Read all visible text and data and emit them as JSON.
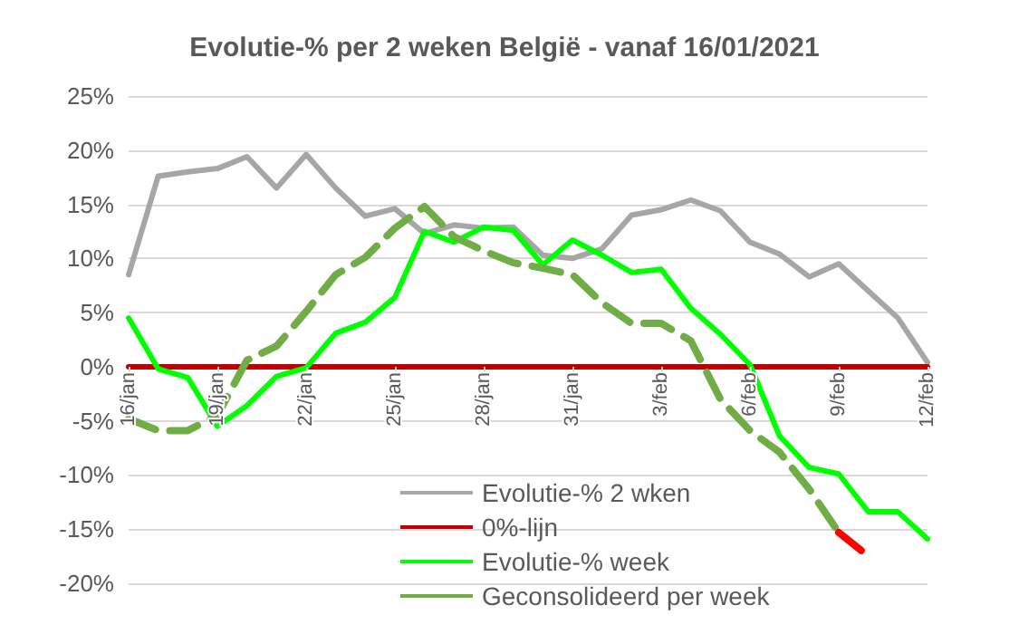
{
  "chart_data": {
    "type": "line",
    "title": "Evolutie-% per 2 weken België - vanaf 16/01/2021",
    "categories": [
      "16/jan",
      null,
      null,
      "19/jan",
      null,
      null,
      "22/jan",
      null,
      null,
      "25/jan",
      null,
      null,
      "28/jan",
      null,
      null,
      "31/jan",
      null,
      null,
      "3/feb",
      null,
      null,
      "6/feb",
      null,
      null,
      "9/feb",
      null,
      null,
      "12/feb"
    ],
    "ylim": [
      -20,
      25
    ],
    "yticks": [
      {
        "value": -20,
        "label": "-20%"
      },
      {
        "value": -15,
        "label": "-15%"
      },
      {
        "value": -10,
        "label": "-10%"
      },
      {
        "value": -5,
        "label": "-5%"
      },
      {
        "value": 0,
        "label": "0%"
      },
      {
        "value": 5,
        "label": "5%"
      },
      {
        "value": 10,
        "label": "10%"
      },
      {
        "value": 15,
        "label": "15%"
      },
      {
        "value": 20,
        "label": "20%"
      },
      {
        "value": 25,
        "label": "25%"
      }
    ],
    "grid": "y",
    "legend": "bottom",
    "marker": "none",
    "series": [
      {
        "name": "Evolutie-% 2 wken",
        "color": "#a6a6a6",
        "line_style": "solid",
        "values": [
          8.5,
          17.6,
          18.0,
          18.3,
          19.4,
          16.5,
          19.6,
          16.5,
          13.9,
          14.6,
          12.3,
          13.1,
          12.8,
          12.9,
          10.3,
          10.0,
          10.9,
          14.0,
          14.5,
          15.4,
          14.4,
          11.5,
          10.4,
          8.3,
          9.5,
          7.0,
          4.5,
          0.4
        ]
      },
      {
        "name": "0%-lijn",
        "color": "#c00000",
        "line_style": "solid",
        "values": [
          0,
          0,
          0,
          0,
          0,
          0,
          0,
          0,
          0,
          0,
          0,
          0,
          0,
          0,
          0,
          0,
          0,
          0,
          0,
          0,
          0,
          0,
          0,
          0,
          0,
          0,
          0,
          0
        ]
      },
      {
        "name": "Evolutie-% week",
        "color": "#00ff00",
        "line_style": "solid",
        "values": [
          4.5,
          -0.2,
          -1.0,
          -5.5,
          -3.6,
          -0.9,
          -0.1,
          3.1,
          4.1,
          6.4,
          12.5,
          11.5,
          12.9,
          12.6,
          9.4,
          11.7,
          10.3,
          8.7,
          9.0,
          5.4,
          3.0,
          0.2,
          -6.4,
          -9.3,
          -9.9,
          -13.4,
          -13.4,
          -15.9
        ]
      },
      {
        "name": "Geconsolideerd per week",
        "color": "#70ad47",
        "line_style": "dashed",
        "values": [
          -4.8,
          -5.9,
          -5.9,
          -4.5,
          0.6,
          1.9,
          5.1,
          8.5,
          10.1,
          12.8,
          14.8,
          12.0,
          10.7,
          9.6,
          9.1,
          8.5,
          5.9,
          4.0,
          4.0,
          2.4,
          -3.0,
          -5.9,
          -7.9,
          -11.3,
          -15.3,
          null,
          null,
          null
        ]
      },
      {
        "color": "#ff0000",
        "line_style": "dashed",
        "values": [
          null,
          null,
          null,
          null,
          null,
          null,
          null,
          null,
          null,
          null,
          null,
          null,
          null,
          null,
          null,
          null,
          null,
          null,
          null,
          null,
          null,
          null,
          null,
          null,
          -15.3,
          -17.5,
          null,
          null
        ]
      }
    ]
  }
}
